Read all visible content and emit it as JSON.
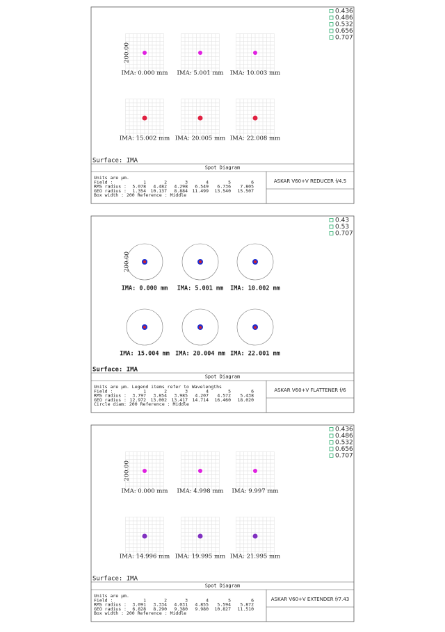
{
  "panels": [
    {
      "legend": [
        "0.436",
        "0.486",
        "0.532",
        "0.656",
        "0.707"
      ],
      "axis_label": "200.00",
      "fields": [
        "IMA: 0.000 mm",
        "IMA: 5.001 mm",
        "IMA: 10.003 mm",
        "IMA: 15.002 mm",
        "IMA: 20.005 mm",
        "IMA: 22.008 mm"
      ],
      "surface": "Surface: IMA",
      "diagram_title": "Spot Diagram",
      "units": "Units are µm.",
      "table": {
        "field_label": "Field :",
        "field_numbers": [
          "1",
          "2",
          "3",
          "4",
          "5",
          "6"
        ],
        "rms_label": "RMS radius :",
        "rms": [
          "5.078",
          "4.482",
          "4.298",
          "6.549",
          "6.736",
          "7.805"
        ],
        "geo_label": "GEO radius :",
        "geo": [
          "1.354",
          "10.137",
          "8.884",
          "11.499",
          "13.540",
          "15.507"
        ]
      },
      "footer": "Box width : 200 Reference : Middle",
      "lens": "ASKAR V60+V REDUCER f/4.5"
    },
    {
      "legend": [
        "0.43",
        "0.53",
        "0.707"
      ],
      "axis_label": "200.00",
      "fields": [
        "IMA: 0.000 mm",
        "IMA: 5.001 mm",
        "IMA: 10.002 mm",
        "IMA: 15.004 mm",
        "IMA: 20.004 mm",
        "IMA: 22.001 mm"
      ],
      "surface": "Surface: IMA",
      "diagram_title": "Spot Diagram",
      "units": "Units are µm. Legend items refer to Wavelengths",
      "table": {
        "field_label": "Field :",
        "field_numbers": [
          "1",
          "2",
          "3",
          "4",
          "5",
          "6"
        ],
        "rms_label": "RMS radius :",
        "rms": [
          "3.797",
          "3.854",
          "3.985",
          "4.207",
          "4.572",
          "5.438"
        ],
        "geo_label": "GEO radius :",
        "geo": [
          "12.972",
          "13.002",
          "13.417",
          "14.714",
          "16.460",
          "18.020"
        ]
      },
      "footer": "Circle diam: 200 Reference : Middle",
      "lens": "ASKAR V60+V FLATTENER f/6"
    },
    {
      "legend": [
        "0.436",
        "0.486",
        "0.532",
        "0.656",
        "0.707"
      ],
      "axis_label": "200.00",
      "fields": [
        "IMA: 0.000 mm",
        "IMA: 4.998 mm",
        "IMA: 9.997 mm",
        "IMA: 14.996 mm",
        "IMA: 19.995 mm",
        "IMA: 21.995 mm"
      ],
      "surface": "Surface: IMA",
      "diagram_title": "Spot Diagram",
      "units": "Units are µm.",
      "table": {
        "field_label": "Field :",
        "field_numbers": [
          "1",
          "2",
          "3",
          "4",
          "5",
          "6"
        ],
        "rms_label": "RMS radius :",
        "rms": [
          "3.091",
          "3.334",
          "4.031",
          "4.855",
          "5.594",
          "5.872"
        ],
        "geo_label": "GEO radius :",
        "geo": [
          "6.828",
          "8.290",
          "9.380",
          "9.980",
          "10.827",
          "11.510"
        ]
      },
      "footer": "Box width : 200 Reference : Middle",
      "lens": "ASKAR V60+V EXTENDER f/7.43"
    }
  ]
}
